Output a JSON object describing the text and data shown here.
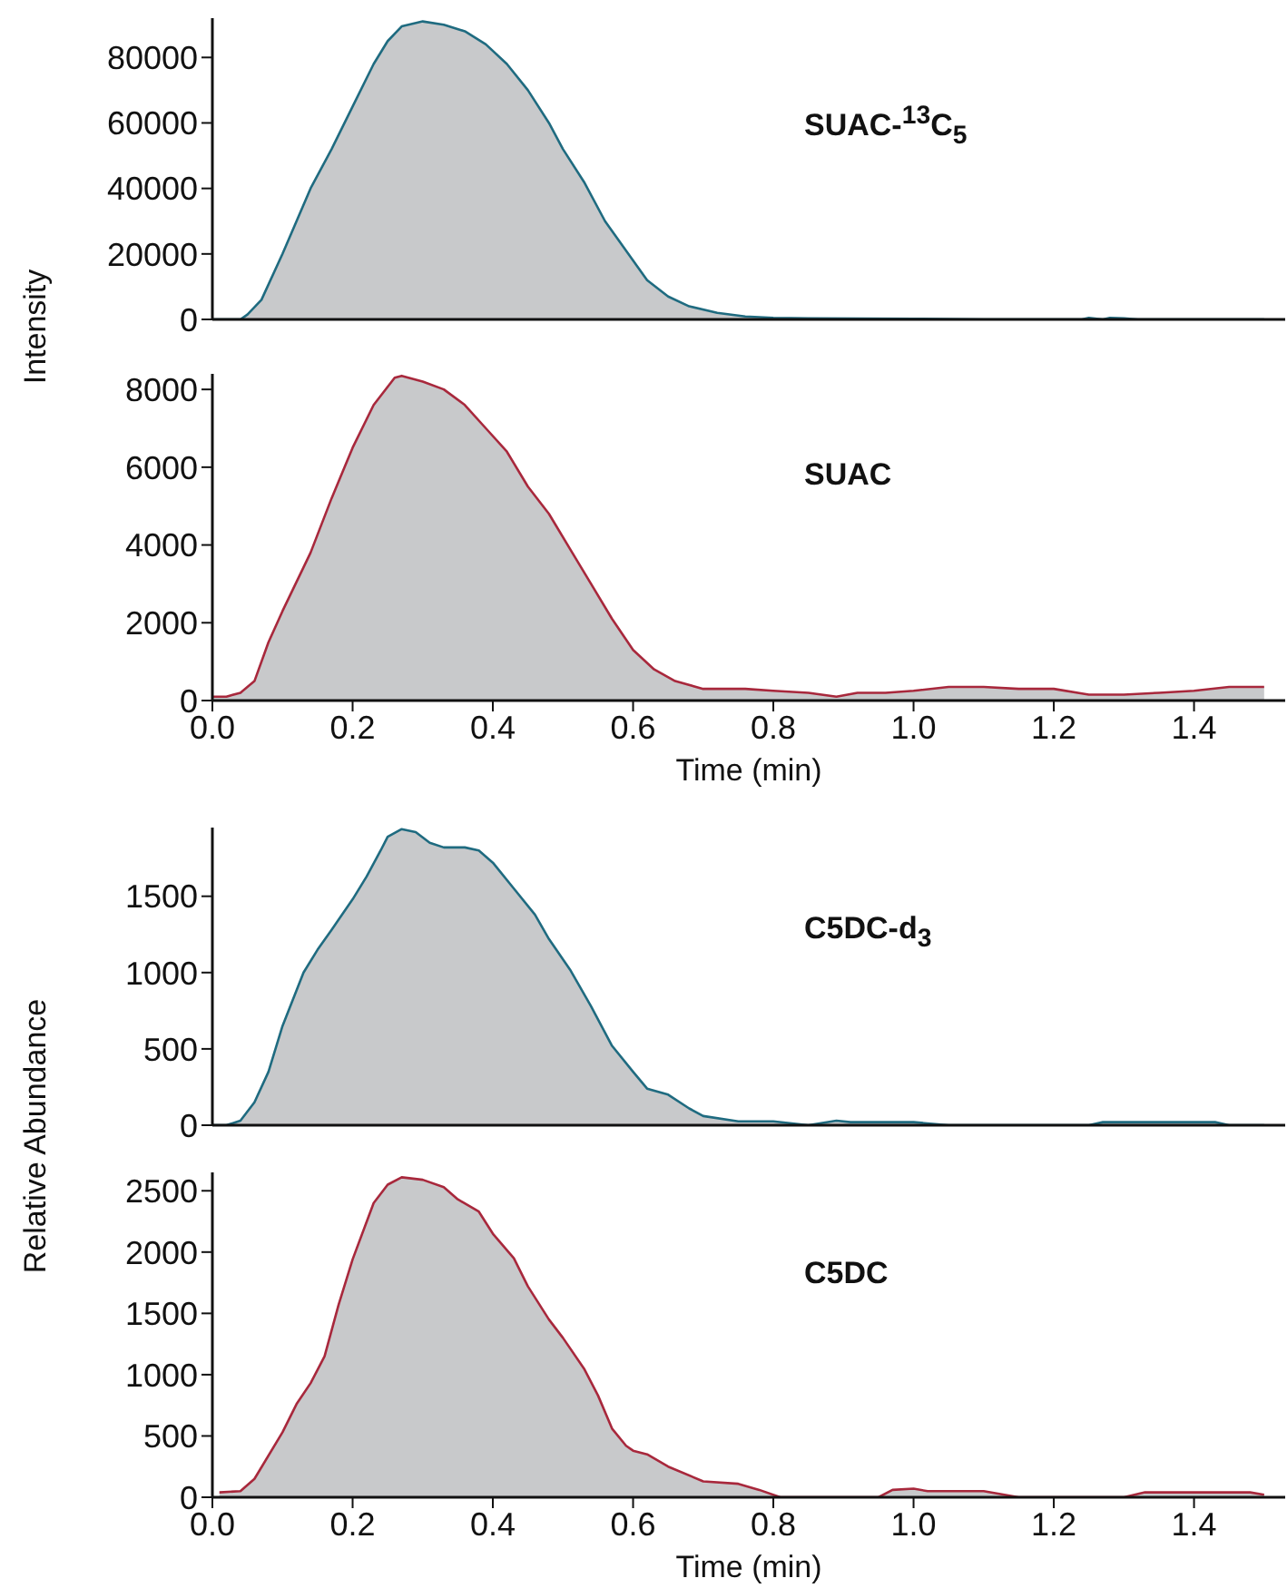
{
  "chart_data": [
    {
      "type": "area",
      "ylabel": "Intensity",
      "annotations": [
        "SUAC-$^{13}$C$_{5}$"
      ],
      "tick_labels": "y",
      "xlim": [
        0,
        1.53
      ],
      "ylim": [
        0,
        92000
      ],
      "yticks": [
        0,
        20000,
        40000,
        60000,
        80000
      ],
      "x": [
        0,
        0.02,
        0.04,
        0.05,
        0.07,
        0.1,
        0.14,
        0.17,
        0.2,
        0.23,
        0.25,
        0.27,
        0.3,
        0.33,
        0.36,
        0.39,
        0.42,
        0.45,
        0.48,
        0.5,
        0.53,
        0.56,
        0.59,
        0.62,
        0.65,
        0.68,
        0.72,
        0.76,
        0.8,
        0.85,
        1.0,
        1.1,
        1.24,
        1.25,
        1.27,
        1.28,
        1.3,
        1.32,
        1.5
      ],
      "series": [
        {
          "color": "#1f6b80",
          "values": [
            0,
            0,
            0,
            1500,
            6000,
            20000,
            40000,
            52000,
            65000,
            78000,
            85000,
            89500,
            91000,
            90000,
            88000,
            84000,
            78000,
            70000,
            60000,
            52000,
            42000,
            30000,
            21000,
            12000,
            7000,
            4000,
            2000,
            900,
            500,
            300,
            200,
            0,
            0,
            500,
            0,
            500,
            300,
            0,
            0
          ]
        }
      ]
    },
    {
      "type": "area",
      "xlabel": "Time (min)",
      "annotations": [
        "SUAC"
      ],
      "xlim": [
        0,
        1.53
      ],
      "ylim": [
        0,
        8400
      ],
      "yticks": [
        0,
        2000,
        4000,
        6000,
        8000
      ],
      "xticks": [
        {
          "value": 0,
          "label": "0.0"
        },
        {
          "value": 0.2,
          "label": "0.2"
        },
        {
          "value": 0.4,
          "label": "0.4"
        },
        {
          "value": 0.6,
          "label": "0.6"
        },
        {
          "value": 0.8,
          "label": "0.8"
        },
        {
          "value": 1,
          "label": "1.0"
        },
        {
          "value": 1.2,
          "label": "1.2"
        },
        {
          "value": 1.4,
          "label": "1.4"
        }
      ],
      "x": [
        0,
        0.02,
        0.04,
        0.06,
        0.08,
        0.1,
        0.14,
        0.17,
        0.2,
        0.23,
        0.26,
        0.27,
        0.3,
        0.33,
        0.36,
        0.39,
        0.42,
        0.45,
        0.48,
        0.51,
        0.54,
        0.57,
        0.6,
        0.63,
        0.66,
        0.7,
        0.76,
        0.8,
        0.85,
        0.89,
        0.92,
        0.96,
        1.0,
        1.05,
        1.1,
        1.15,
        1.2,
        1.25,
        1.3,
        1.35,
        1.4,
        1.45,
        1.5
      ],
      "series": [
        {
          "color": "#a8283c",
          "values": [
            100,
            100,
            200,
            500,
            1500,
            2300,
            3800,
            5200,
            6500,
            7600,
            8300,
            8350,
            8200,
            8000,
            7600,
            7000,
            6400,
            5500,
            4800,
            3900,
            3000,
            2100,
            1300,
            800,
            500,
            300,
            300,
            250,
            200,
            100,
            200,
            200,
            250,
            350,
            350,
            300,
            300,
            150,
            150,
            200,
            250,
            350,
            350
          ]
        }
      ]
    },
    {
      "type": "area",
      "ylabel": "Relative Abundance",
      "annotations": [
        "C5DC-d$_{3}$"
      ],
      "tick_labels": "y",
      "xlim": [
        0,
        1.53
      ],
      "ylim": [
        0,
        1950
      ],
      "yticks": [
        0,
        500,
        1000,
        1500
      ],
      "x": [
        0,
        0.02,
        0.04,
        0.06,
        0.08,
        0.1,
        0.13,
        0.15,
        0.17,
        0.2,
        0.22,
        0.24,
        0.25,
        0.27,
        0.29,
        0.31,
        0.33,
        0.36,
        0.38,
        0.4,
        0.43,
        0.46,
        0.48,
        0.51,
        0.54,
        0.57,
        0.6,
        0.62,
        0.65,
        0.68,
        0.7,
        0.75,
        0.8,
        0.85,
        0.89,
        0.91,
        1.0,
        1.05,
        1.25,
        1.27,
        1.43,
        1.45,
        1.5
      ],
      "series": [
        {
          "color": "#1f6b80",
          "values": [
            0,
            0,
            30,
            150,
            350,
            650,
            1000,
            1150,
            1280,
            1480,
            1630,
            1800,
            1890,
            1940,
            1920,
            1850,
            1820,
            1820,
            1800,
            1720,
            1550,
            1380,
            1220,
            1020,
            780,
            520,
            350,
            240,
            200,
            110,
            60,
            25,
            25,
            0,
            30,
            20,
            20,
            0,
            0,
            20,
            20,
            0,
            0
          ]
        }
      ]
    },
    {
      "type": "area",
      "xlabel": "Time (min)",
      "annotations": [
        "C5DC"
      ],
      "xlim": [
        0,
        1.53
      ],
      "ylim": [
        0,
        2650
      ],
      "yticks": [
        0,
        500,
        1000,
        1500,
        2000,
        2500
      ],
      "xticks": [
        {
          "value": 0,
          "label": "0.0"
        },
        {
          "value": 0.2,
          "label": "0.2"
        },
        {
          "value": 0.4,
          "label": "0.4"
        },
        {
          "value": 0.6,
          "label": "0.6"
        },
        {
          "value": 0.8,
          "label": "0.8"
        },
        {
          "value": 1,
          "label": "1.0"
        },
        {
          "value": 1.2,
          "label": "1.2"
        },
        {
          "value": 1.4,
          "label": "1.4"
        }
      ],
      "x": [
        0.01,
        0.04,
        0.06,
        0.1,
        0.12,
        0.14,
        0.16,
        0.18,
        0.2,
        0.23,
        0.25,
        0.27,
        0.3,
        0.33,
        0.35,
        0.38,
        0.4,
        0.43,
        0.45,
        0.48,
        0.5,
        0.53,
        0.55,
        0.57,
        0.59,
        0.6,
        0.62,
        0.65,
        0.7,
        0.75,
        0.78,
        0.81,
        0.95,
        0.97,
        1.0,
        1.02,
        1.1,
        1.15,
        1.3,
        1.33,
        1.48,
        1.5
      ],
      "series": [
        {
          "color": "#a8283c",
          "values": [
            40,
            50,
            150,
            530,
            760,
            930,
            1150,
            1570,
            1940,
            2400,
            2550,
            2610,
            2590,
            2530,
            2430,
            2330,
            2150,
            1950,
            1720,
            1450,
            1300,
            1050,
            830,
            560,
            420,
            380,
            350,
            250,
            130,
            110,
            60,
            0,
            0,
            60,
            70,
            50,
            50,
            0,
            0,
            40,
            40,
            20
          ]
        }
      ]
    }
  ]
}
